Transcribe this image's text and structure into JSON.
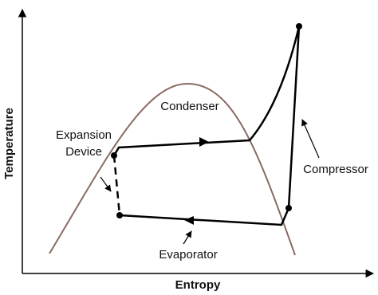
{
  "axes": {
    "x_label": "Entropy",
    "y_label": "Temperature"
  },
  "labels": {
    "condenser": "Condenser",
    "expansion_device": [
      "Expansion",
      "Device"
    ],
    "compressor": "Compressor",
    "evaporator": "Evaporator"
  }
}
